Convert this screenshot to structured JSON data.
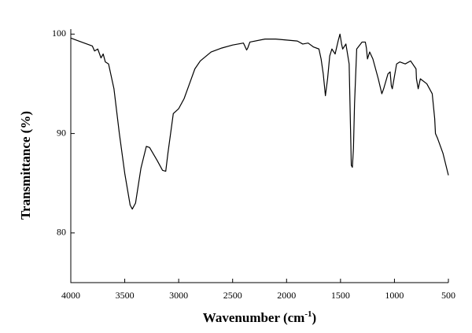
{
  "chart_data": {
    "type": "line",
    "x_label": [
      "Wavenumber (cm",
      "-1",
      ")"
    ],
    "y_label": "Transmittance (%)",
    "xlim": [
      4000,
      500
    ],
    "ylim": [
      75,
      100.5
    ],
    "xticks": [
      4000,
      3500,
      3000,
      2500,
      2000,
      1500,
      1000,
      500
    ],
    "yticks": [
      80,
      90,
      100
    ],
    "x": [
      4000,
      3950,
      3900,
      3850,
      3800,
      3780,
      3750,
      3720,
      3700,
      3680,
      3650,
      3600,
      3550,
      3500,
      3450,
      3430,
      3400,
      3350,
      3300,
      3270,
      3200,
      3150,
      3120,
      3100,
      3050,
      3000,
      2950,
      2900,
      2850,
      2800,
      2700,
      2600,
      2500,
      2400,
      2370,
      2360,
      2340,
      2200,
      2100,
      2000,
      1900,
      1850,
      1800,
      1750,
      1700,
      1680,
      1660,
      1640,
      1620,
      1600,
      1580,
      1550,
      1520,
      1505,
      1490,
      1480,
      1450,
      1420,
      1400,
      1390,
      1380,
      1370,
      1350,
      1300,
      1270,
      1260,
      1250,
      1230,
      1200,
      1150,
      1117,
      1100,
      1060,
      1040,
      1029,
      1020,
      980,
      950,
      900,
      850,
      800,
      796,
      780,
      760,
      700,
      650,
      627,
      620,
      600,
      550,
      500
    ],
    "values": [
      99.6,
      99.4,
      99.2,
      99.0,
      98.8,
      98.3,
      98.5,
      97.6,
      98.0,
      97.2,
      97.0,
      94.5,
      90.0,
      86.0,
      82.8,
      82.4,
      83.0,
      86.5,
      88.7,
      88.6,
      87.3,
      86.3,
      86.2,
      88.0,
      92.0,
      92.5,
      93.5,
      95.0,
      96.5,
      97.3,
      98.2,
      98.6,
      98.9,
      99.1,
      98.4,
      98.6,
      99.2,
      99.5,
      99.5,
      99.4,
      99.3,
      99.0,
      99.1,
      98.7,
      98.5,
      97.5,
      96.0,
      93.8,
      95.5,
      97.8,
      98.5,
      98.0,
      99.4,
      100.0,
      99.0,
      98.5,
      99.0,
      97.0,
      86.8,
      86.6,
      88.5,
      93.0,
      98.5,
      99.2,
      99.2,
      98.6,
      97.5,
      98.2,
      97.5,
      95.5,
      94.0,
      94.5,
      96.0,
      96.2,
      94.8,
      94.5,
      97.0,
      97.2,
      97.0,
      97.3,
      96.5,
      95.5,
      94.5,
      95.5,
      95.0,
      94.0,
      91.5,
      90.0,
      89.5,
      88.0,
      85.8
    ],
    "color": "#000000"
  }
}
